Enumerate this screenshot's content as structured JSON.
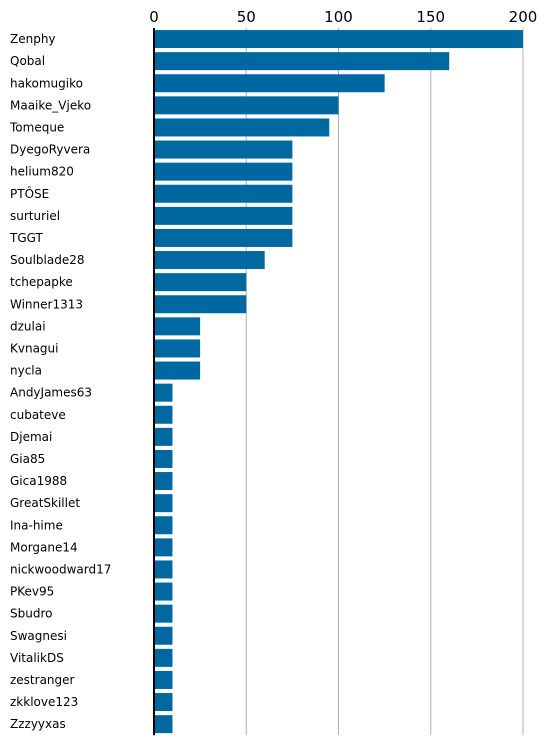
{
  "chart_data": {
    "type": "bar",
    "orientation": "horizontal",
    "title": "",
    "xlabel": "",
    "ylabel": "",
    "xlim": [
      0,
      200
    ],
    "x_ticks": [
      0,
      50,
      100,
      150,
      200
    ],
    "x_axis_position": "top",
    "grid": true,
    "legend": "none",
    "bar_color": "#0068a0",
    "grid_color": "#b0b0b0",
    "categories": [
      "Zenphy",
      "Qobal",
      "hakomugiko",
      "Maaike_Vjeko",
      "Tomeque",
      "DyegoRyvera",
      "helium820",
      "PTÔSE",
      "surturiel",
      "TGGT",
      "Soulblade28",
      "tchepapke",
      "Winner1313",
      "dzulai",
      "Kvnagui",
      "nycla",
      "AndyJames63",
      "cubateve",
      "Djemai",
      "Gia85",
      "Gica1988",
      "GreatSkillet",
      "Ina-hime",
      "Morgane14",
      "nickwoodward17",
      "PKev95",
      "Sbudro",
      "Swagnesi",
      "VitalikDS",
      "zestranger",
      "zkklove123",
      "Zzzyyxas"
    ],
    "values": [
      200,
      160,
      125,
      100,
      95,
      75,
      75,
      75,
      75,
      75,
      60,
      50,
      50,
      25,
      25,
      25,
      10,
      10,
      10,
      10,
      10,
      10,
      10,
      10,
      10,
      10,
      10,
      10,
      10,
      10,
      10,
      10
    ]
  }
}
